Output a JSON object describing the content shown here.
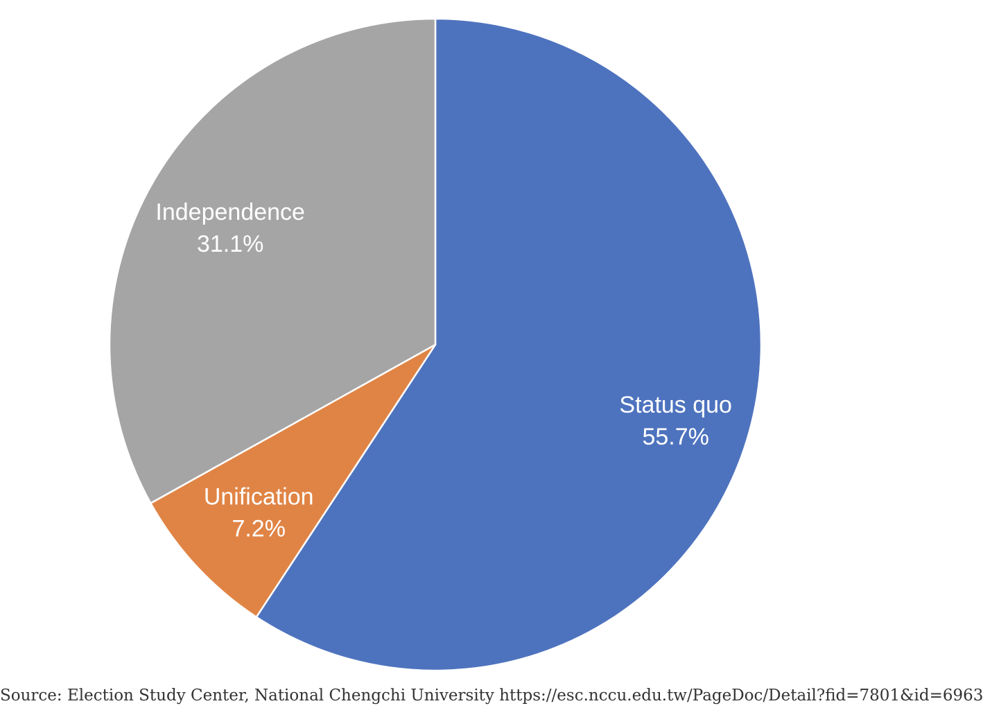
{
  "chart_data": {
    "type": "pie",
    "title": "",
    "start_angle_deg": 0,
    "direction": "clockwise",
    "slices": [
      {
        "label": "Status quo",
        "value": 55.7,
        "display": "55.7%",
        "color": "#4e73be"
      },
      {
        "label": "Unification",
        "value": 7.2,
        "display": "7.2%",
        "color": "#e08445"
      },
      {
        "label": "Independence",
        "value": 31.1,
        "display": "31.1%",
        "color": "#a5a5a5"
      }
    ]
  },
  "source": "Source: Election Study Center, National Chengchi University https://esc.nccu.edu.tw/PageDoc/Detail?fid=7801&id=6963"
}
